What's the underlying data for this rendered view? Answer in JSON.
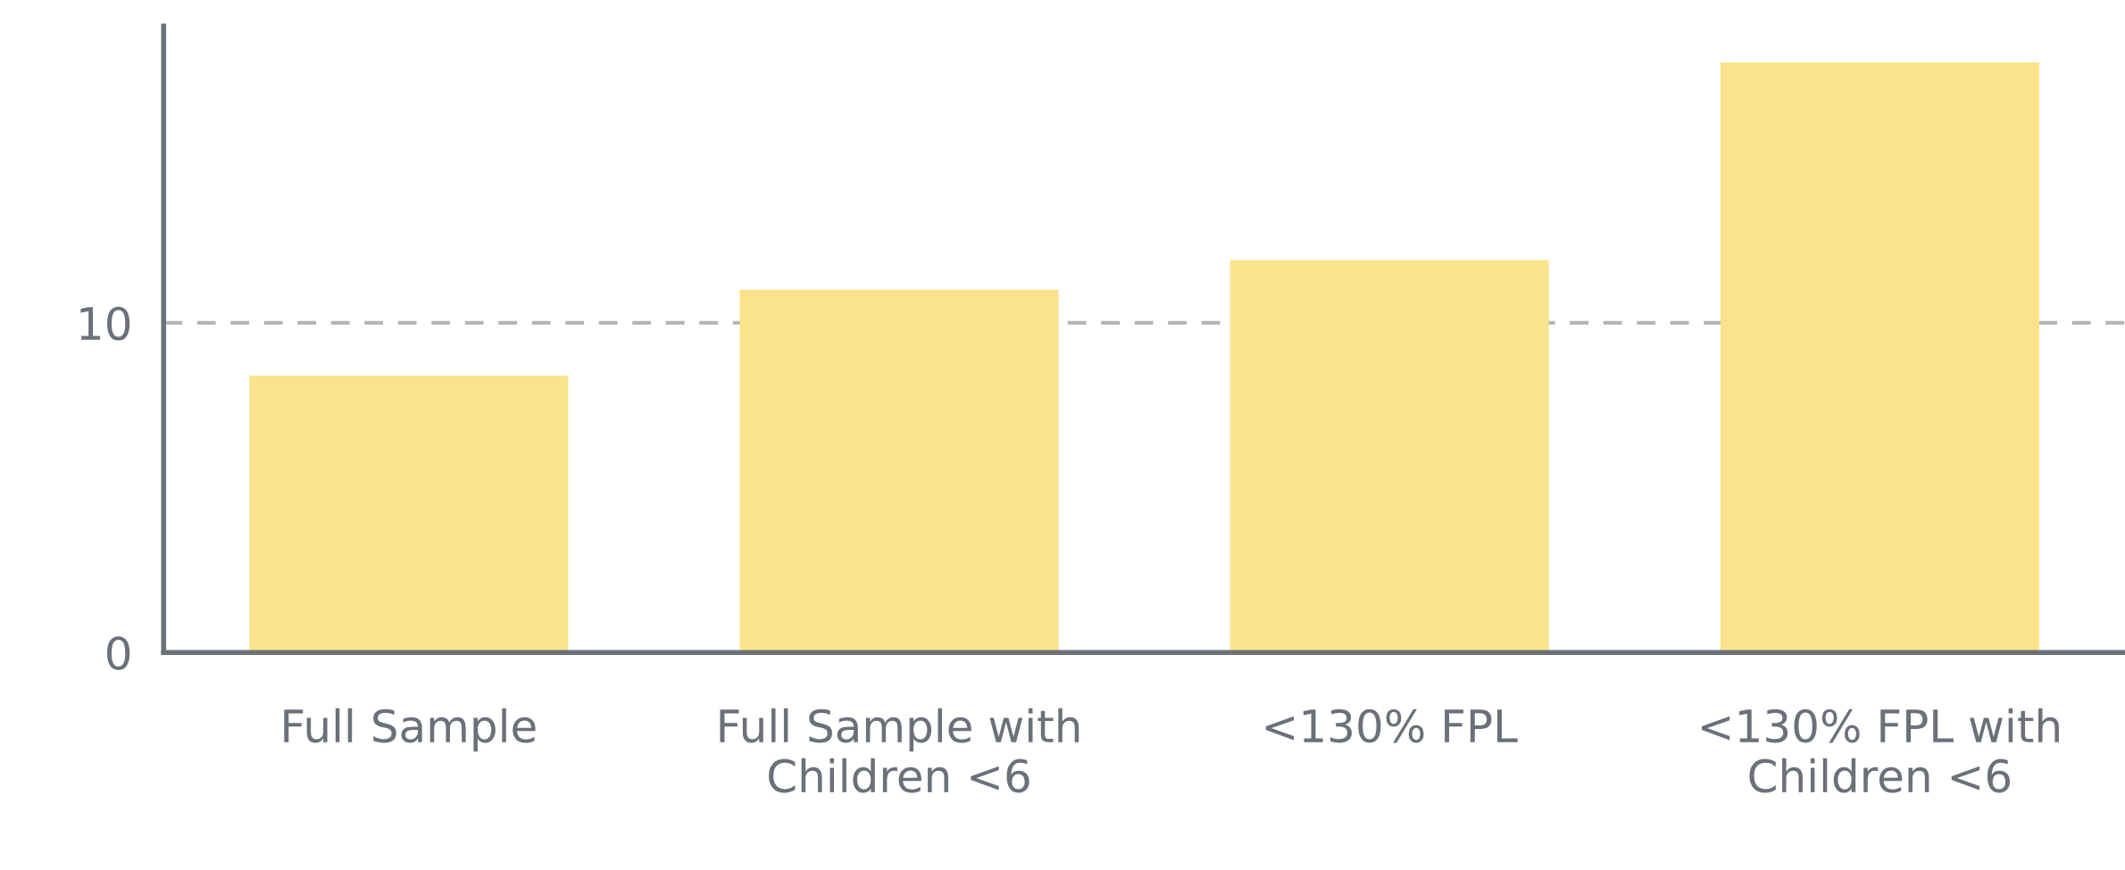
{
  "chart_data": {
    "type": "bar",
    "categories": [
      "Full Sample",
      "Full Sample with\nChildren <6",
      "<130% FPL",
      "<130% FPL with\nChildren <6"
    ],
    "values": [
      8.4,
      11.0,
      11.9,
      17.9
    ],
    "color": "#fae38a",
    "ylim": [
      0,
      19
    ],
    "yticks": [
      0,
      10
    ],
    "grid": "y"
  }
}
